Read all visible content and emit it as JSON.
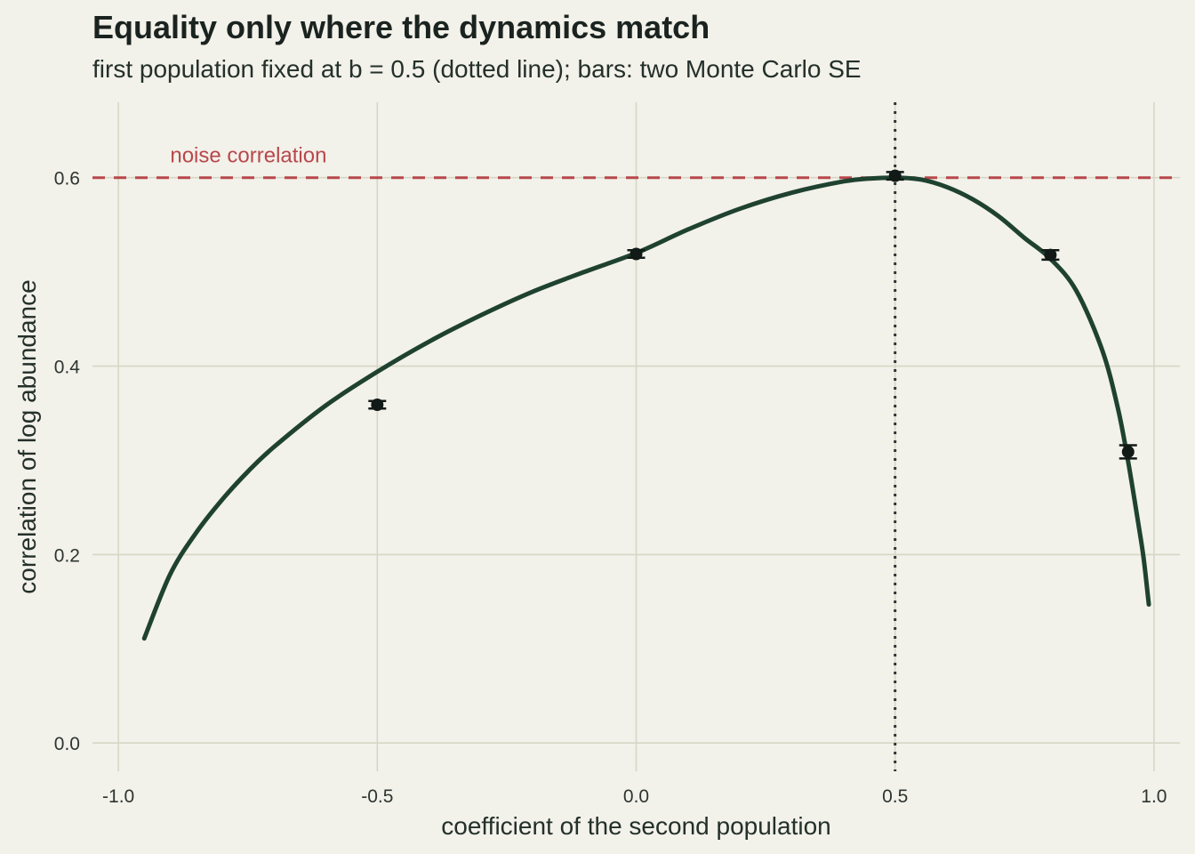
{
  "chart_data": {
    "type": "line",
    "title": "Equality only where the dynamics match",
    "subtitle": "first population fixed at b = 0.5 (dotted line); bars: two Monte Carlo SE",
    "xlabel": "coefficient of the second population",
    "ylabel": "correlation of log abundance",
    "xlim": [
      -1.05,
      1.05
    ],
    "ylim": [
      -0.03,
      0.68
    ],
    "x_ticks": [
      -1.0,
      -0.5,
      0.0,
      0.5,
      1.0
    ],
    "x_tick_labels": [
      "-1.0",
      "-0.5",
      "0.0",
      "0.5",
      "1.0"
    ],
    "y_ticks": [
      0.0,
      0.2,
      0.4,
      0.6
    ],
    "y_tick_labels": [
      "0.0",
      "0.2",
      "0.4",
      "0.6"
    ],
    "grid": true,
    "curve": {
      "x": [
        -0.95,
        -0.9,
        -0.85,
        -0.8,
        -0.75,
        -0.7,
        -0.6,
        -0.5,
        -0.4,
        -0.3,
        -0.2,
        -0.1,
        0.0,
        0.1,
        0.2,
        0.3,
        0.4,
        0.45,
        0.5,
        0.55,
        0.6,
        0.65,
        0.7,
        0.75,
        0.8,
        0.85,
        0.9,
        0.93,
        0.95,
        0.97,
        0.98,
        0.99
      ],
      "y": [
        0.111,
        0.179,
        0.223,
        0.258,
        0.288,
        0.314,
        0.358,
        0.394,
        0.426,
        0.454,
        0.479,
        0.5,
        0.52,
        0.545,
        0.567,
        0.584,
        0.596,
        0.599,
        0.6,
        0.598,
        0.59,
        0.577,
        0.559,
        0.536,
        0.514,
        0.48,
        0.417,
        0.356,
        0.299,
        0.232,
        0.196,
        0.147
      ]
    },
    "monte_carlo": {
      "x": [
        -0.5,
        0.0,
        0.5,
        0.8,
        0.95
      ],
      "y": [
        0.359,
        0.519,
        0.602,
        0.518,
        0.309
      ],
      "two_se": [
        0.004,
        0.004,
        0.004,
        0.005,
        0.007
      ]
    },
    "reference_lines": {
      "noise_correlation": 0.6,
      "noise_label": "noise correlation",
      "fixed_b": 0.5
    },
    "colors": {
      "background": "#f2f1ea",
      "grid": "#d7d7c5",
      "curve": "#1f4230",
      "points": "#111a16",
      "noise_line": "#b8474b",
      "dotted_line": "#333333",
      "text": "#24302a"
    }
  }
}
